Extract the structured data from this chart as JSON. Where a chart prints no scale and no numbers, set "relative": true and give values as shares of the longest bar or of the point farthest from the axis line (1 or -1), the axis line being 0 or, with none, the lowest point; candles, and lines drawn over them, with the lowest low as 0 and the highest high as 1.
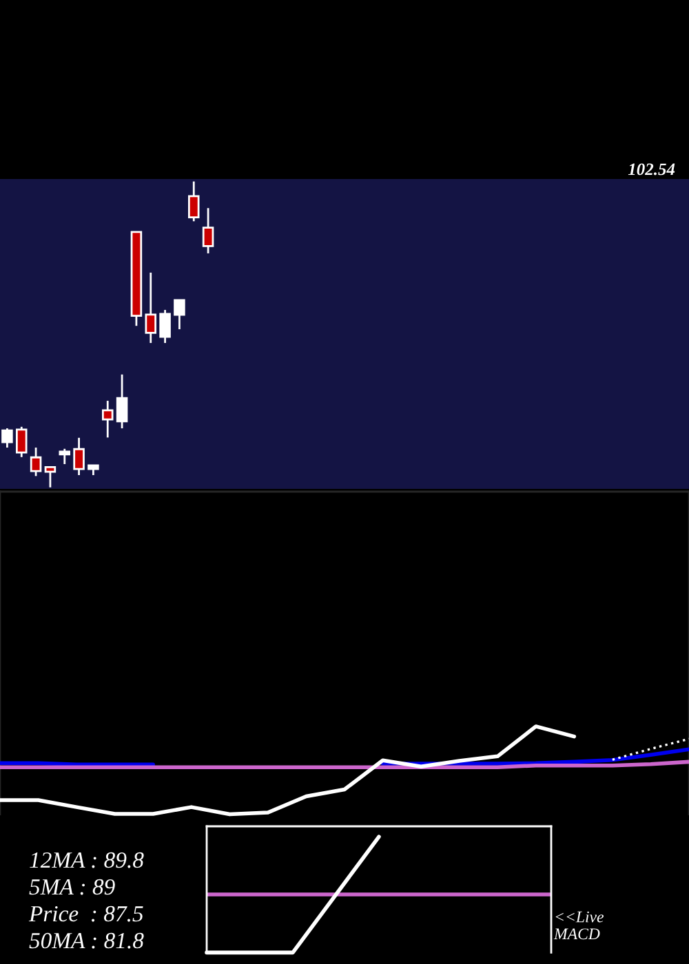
{
  "chart_data": [
    {
      "type": "candlestick",
      "relative": true,
      "categories": [
        null,
        null,
        null,
        null,
        null,
        null,
        null,
        null,
        null,
        null,
        null,
        null,
        null,
        null,
        null,
        null,
        null,
        null,
        null,
        null,
        null,
        null,
        null,
        null,
        null,
        null,
        null,
        null,
        null,
        null,
        null,
        null,
        null,
        null,
        null,
        null,
        null,
        null,
        null,
        null,
        null,
        null,
        null,
        null,
        null,
        null,
        null,
        null
      ],
      "ohlc": [
        [
          0.148,
          0.193,
          0.13,
          0.186
        ],
        [
          0.189,
          0.198,
          0.099,
          0.114
        ],
        [
          0.098,
          0.13,
          0.037,
          0.053
        ],
        [
          0.066,
          0.066,
          0.0,
          0.051
        ],
        [
          0.108,
          0.126,
          0.076,
          0.117
        ],
        [
          0.125,
          0.162,
          0.04,
          0.06
        ],
        [
          0.06,
          0.072,
          0.04,
          0.072
        ],
        [
          0.252,
          0.283,
          0.163,
          0.222
        ],
        [
          0.216,
          0.369,
          0.193,
          0.292
        ],
        [
          0.835,
          0.835,
          0.528,
          0.561
        ],
        [
          0.565,
          0.702,
          0.472,
          0.505
        ],
        [
          0.492,
          0.58,
          0.472,
          0.567
        ],
        [
          0.564,
          0.612,
          0.517,
          0.612
        ],
        [
          0.952,
          1.0,
          0.87,
          0.883
        ],
        [
          0.849,
          0.913,
          0.765,
          0.789
        ],
        null,
        null,
        null,
        null,
        null,
        null,
        null,
        null,
        null,
        null,
        null,
        null,
        null,
        null,
        null,
        null,
        null,
        null,
        null,
        null,
        null,
        null,
        null,
        null,
        null,
        null,
        null,
        null,
        null,
        null,
        null,
        null,
        null
      ],
      "colors": [
        "#ffffff",
        "#cc0000",
        "#cc0000",
        "#cc0000",
        "#ffffff",
        "#cc0000",
        "#ffffff",
        "#cc0000",
        "#ffffff",
        "#cc0000",
        "#cc0000",
        "#ffffff",
        "#ffffff",
        "#cc0000",
        "#cc0000",
        null,
        null,
        null,
        null,
        null,
        null,
        null,
        null,
        null,
        null,
        null,
        null,
        null,
        null,
        null,
        null,
        null,
        null,
        null,
        null,
        null,
        null,
        null,
        null,
        null,
        null,
        null,
        null,
        null,
        null,
        null,
        null,
        null
      ],
      "annotations": [
        "102.54"
      ]
    },
    {
      "type": "line",
      "relative": true,
      "categories": [
        null,
        null,
        null,
        null,
        null,
        null,
        null,
        null,
        null,
        null,
        null,
        null,
        null,
        null,
        null,
        null,
        null,
        null,
        null
      ],
      "series": [
        {
          "color": "#0000ee",
          "values": [
            0.582,
            0.582,
            0.566,
            0.566,
            0.566,
            null,
            null,
            null,
            null,
            null,
            0.577,
            0.577,
            0.577,
            0.577,
            0.582,
            0.597,
            0.618,
            0.676,
            0.739
          ]
        },
        {
          "color": "#cc66cc",
          "values": [
            0.536,
            0.536,
            0.536,
            0.536,
            0.536,
            0.536,
            0.536,
            0.536,
            0.536,
            0.536,
            0.536,
            0.536,
            0.536,
            0.536,
            0.555,
            0.555,
            0.555,
            0.571,
            0.597
          ]
        },
        {
          "color": "#ffffff",
          "values": [
            0.162,
            0.162,
            0.082,
            0.005,
            0.005,
            0.082,
            0.0,
            0.02,
            0.204,
            0.283,
            0.613,
            0.544,
            0.607,
            0.66,
            1.0,
            0.885,
            null,
            null,
            null
          ]
        },
        {
          "color": "#ffffff",
          "line_style": "dotted",
          "values": [
            null,
            null,
            null,
            null,
            null,
            null,
            null,
            null,
            null,
            null,
            null,
            null,
            null,
            null,
            null,
            null,
            0.621,
            0.744,
            0.858
          ]
        }
      ],
      "annotations": [
        "12MA : 89.8",
        "5MA : 89",
        "Price  : 87.5",
        "50MA : 81.8"
      ]
    },
    {
      "type": "line",
      "relative": true,
      "categories": [
        null,
        null,
        null,
        null,
        null
      ],
      "series": [
        {
          "color": "#ffffff",
          "values": [
            0,
            0,
            1,
            null,
            null
          ]
        }
      ],
      "ref_lines": [
        {
          "axis": "y",
          "value": 0.502,
          "color": "#cc66cc"
        }
      ],
      "annotations": [
        "<<Live\nMACD"
      ]
    }
  ]
}
